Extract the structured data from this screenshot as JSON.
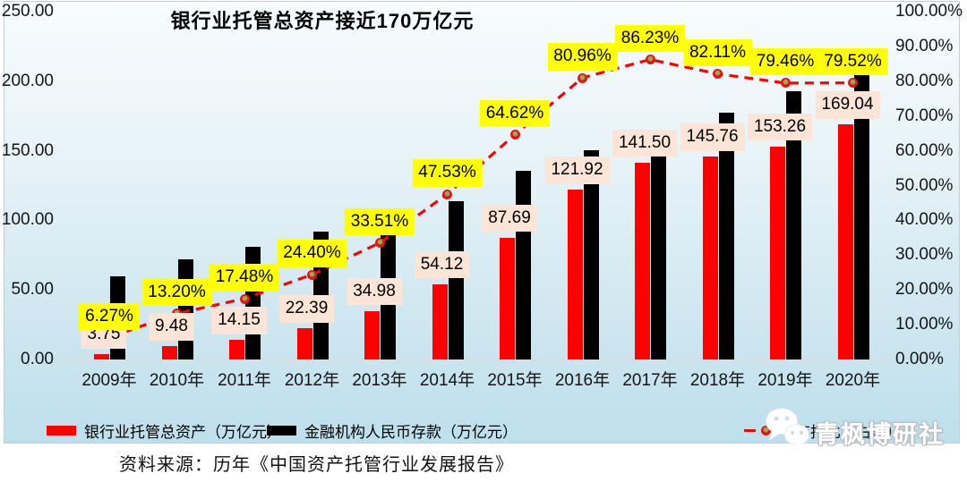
{
  "title": "银行业托管总资产接近170万亿元",
  "source": "资料来源：历年《中国资产托管行业发展报告》",
  "watermark": "青枫博研社",
  "colors": {
    "custody_bar": "#fe0000",
    "deposit_bar": "#000000",
    "ratio_line": "#ff0000",
    "bar_label_bg": "#fce4d6",
    "ratio_label_bg": "#ffff00",
    "chart_bg_top": "#f8fcfe",
    "chart_bg_bottom": "#bedfed"
  },
  "chart_data": {
    "type": "bar",
    "subtype": "combo-bar-line",
    "title": "银行业托管总资产接近170万亿元",
    "categories": [
      "2009年",
      "2010年",
      "2011年",
      "2012年",
      "2013年",
      "2014年",
      "2015年",
      "2016年",
      "2017年",
      "2018年",
      "2019年",
      "2020年"
    ],
    "series": [
      {
        "name": "银行业托管总资产（万亿元）",
        "type": "bar",
        "axis": "left",
        "color": "#fe0000",
        "values": [
          3.75,
          9.48,
          14.15,
          22.39,
          34.98,
          54.12,
          87.69,
          121.92,
          141.5,
          145.76,
          153.26,
          169.04
        ],
        "data_labels": [
          "3.75",
          "9.48",
          "14.15",
          "22.39",
          "34.98",
          "54.12",
          "87.69",
          "121.92",
          "141.50",
          "145.76",
          "153.26",
          "169.04"
        ]
      },
      {
        "name": "金融机构人民币存款（万亿元）",
        "type": "bar",
        "axis": "left",
        "color": "#000000",
        "values_estimated_from_bar_heights": [
          59.8,
          71.8,
          81.0,
          91.8,
          104.4,
          113.9,
          135.7,
          150.6,
          164.1,
          177.5,
          192.9,
          212.6
        ]
      },
      {
        "name": "存托比（右轴）",
        "type": "line",
        "axis": "right",
        "color": "#ff0000",
        "line_style": "dashed",
        "marker": "circle-red-olive",
        "values": [
          6.27,
          13.2,
          17.48,
          24.4,
          33.51,
          47.53,
          64.62,
          80.96,
          86.23,
          82.11,
          79.46,
          79.52
        ],
        "data_labels": [
          "6.27%",
          "13.20%",
          "17.48%",
          "24.40%",
          "33.51%",
          "47.53%",
          "64.62%",
          "80.96%",
          "86.23%",
          "82.11%",
          "79.46%",
          "79.52%"
        ]
      }
    ],
    "left_axis": {
      "min": 0,
      "max": 250,
      "step": 50,
      "ticks": [
        "0.00",
        "50.00",
        "100.00",
        "150.00",
        "200.00",
        "250.00"
      ]
    },
    "right_axis": {
      "min": 0,
      "max": 100,
      "step": 10,
      "ticks": [
        "0.00%",
        "10.00%",
        "20.00%",
        "30.00%",
        "40.00%",
        "50.00%",
        "60.00%",
        "70.00%",
        "80.00%",
        "90.00%",
        "100.00%"
      ]
    },
    "grid": false,
    "legend_position": "bottom"
  }
}
